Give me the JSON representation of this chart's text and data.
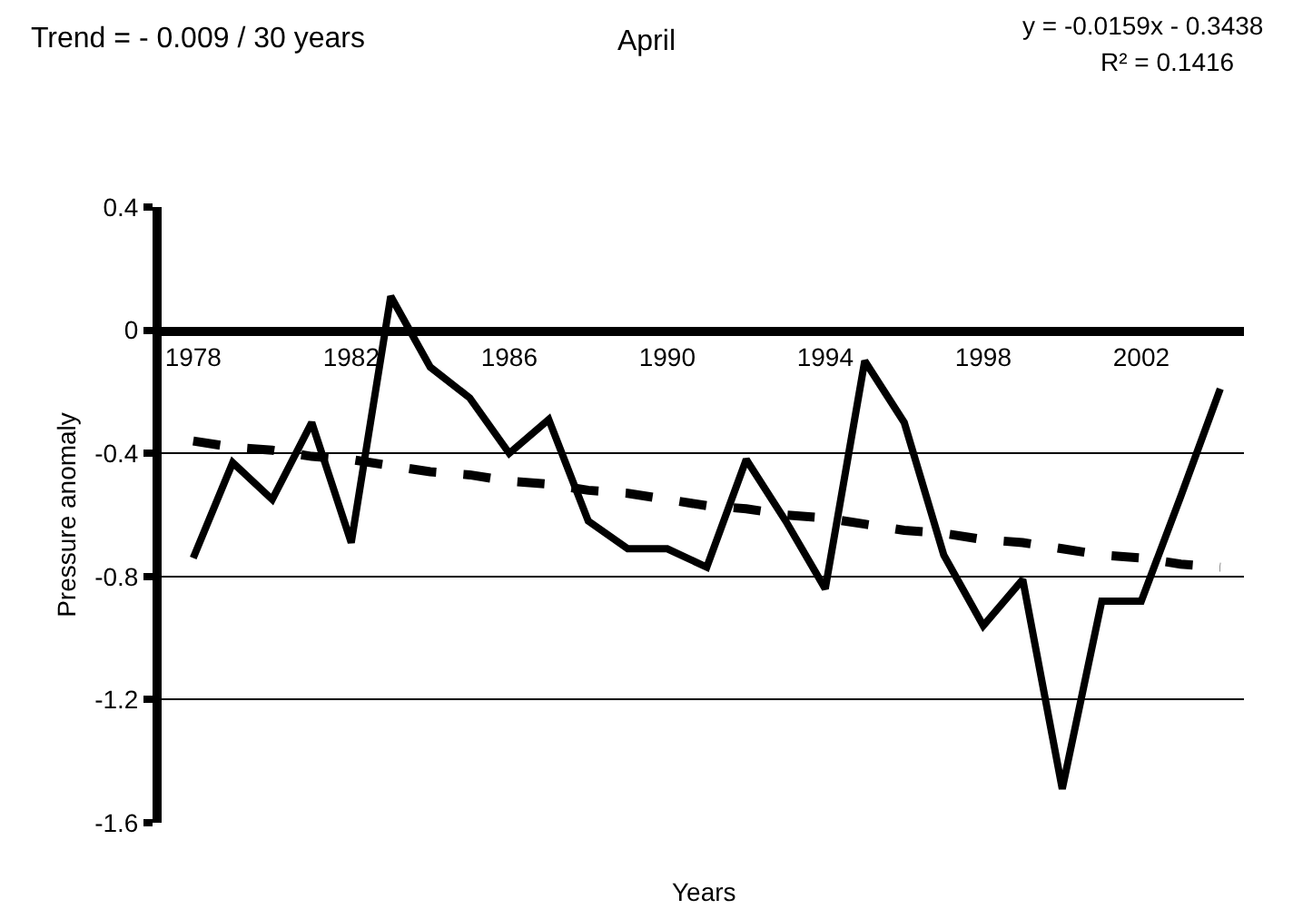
{
  "chart_data": {
    "type": "line",
    "title": "April",
    "xlabel": "Years",
    "ylabel": "Pressure anomaly",
    "annotations": [
      "Trend = - 0.009 / 30 years",
      "y = -0.0159x - 0.3438",
      "R² = 0.1416"
    ],
    "categories": [
      "1978",
      null,
      null,
      null,
      "1982",
      null,
      null,
      null,
      "1986",
      null,
      null,
      null,
      "1990",
      null,
      null,
      null,
      "1994",
      null,
      null,
      null,
      "1998",
      null,
      null,
      null,
      "2002",
      null,
      null
    ],
    "series": [
      {
        "color": "#000000",
        "line_style": "solid",
        "values": [
          -0.74,
          -0.43,
          -0.55,
          -0.3,
          -0.69,
          0.11,
          -0.12,
          -0.22,
          -0.4,
          -0.29,
          -0.62,
          -0.71,
          -0.71,
          -0.77,
          -0.42,
          -0.62,
          -0.84,
          -0.1,
          -0.3,
          -0.73,
          -0.96,
          -0.81,
          -1.49,
          -0.88,
          -0.88,
          -0.54,
          -0.19
        ]
      },
      {
        "color": "#000000",
        "line_style": "dashed",
        "values": [
          -0.36,
          -0.38,
          -0.39,
          -0.41,
          -0.42,
          -0.44,
          -0.46,
          -0.47,
          -0.49,
          -0.5,
          -0.52,
          -0.53,
          -0.55,
          -0.57,
          -0.58,
          -0.6,
          -0.61,
          -0.63,
          -0.65,
          -0.66,
          -0.68,
          -0.69,
          -0.71,
          -0.73,
          -0.74,
          -0.76,
          -0.77
        ]
      }
    ],
    "ylim": [
      -1.6,
      0.4
    ],
    "yticks": [
      -1.6,
      -1.2,
      -0.8,
      -0.4,
      0,
      0.4
    ],
    "grid": "y",
    "marker": "none"
  }
}
